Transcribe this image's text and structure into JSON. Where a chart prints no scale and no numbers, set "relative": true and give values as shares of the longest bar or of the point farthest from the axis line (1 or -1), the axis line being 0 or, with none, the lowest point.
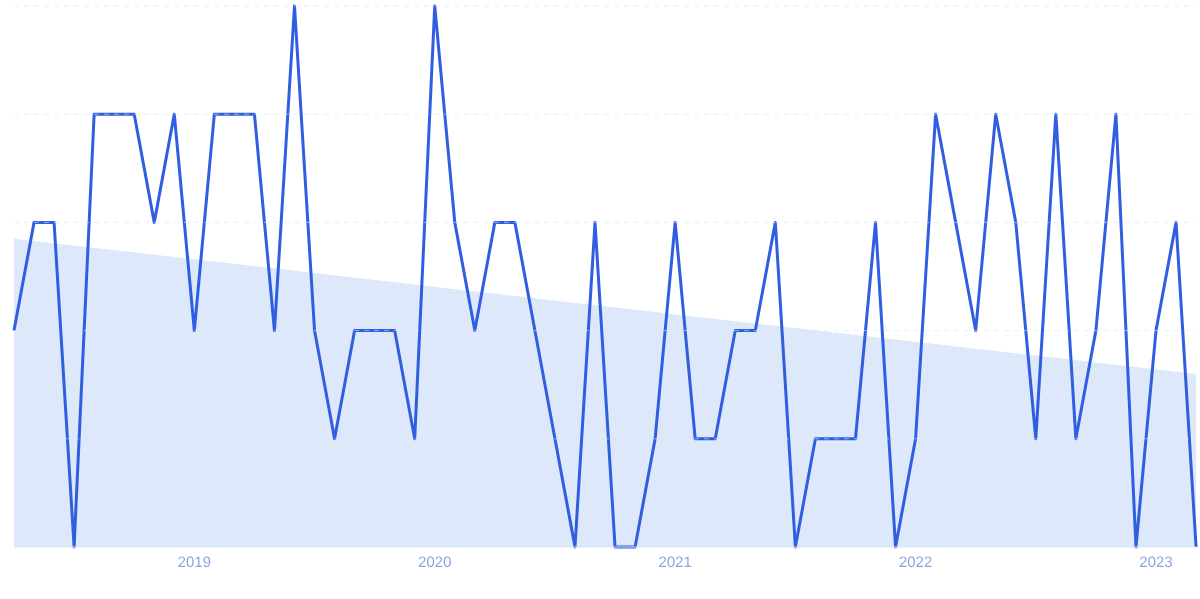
{
  "chart_data": {
    "type": "line",
    "relative": true,
    "grid": "y",
    "x": [
      "2018-04",
      "2018-05",
      "2018-06",
      "2018-07",
      "2018-08",
      "2018-09",
      "2018-10",
      "2018-11",
      "2018-12",
      "2019-01",
      "2019-02",
      "2019-03",
      "2019-04",
      "2019-05",
      "2019-06",
      "2019-07",
      "2019-08",
      "2019-09",
      "2019-10",
      "2019-11",
      "2019-12",
      "2020-01",
      "2020-02",
      "2020-03",
      "2020-04",
      "2020-05",
      "2020-06",
      "2020-07",
      "2020-08",
      "2020-09",
      "2020-10",
      "2020-11",
      "2020-12",
      "2021-01",
      "2021-02",
      "2021-03",
      "2021-04",
      "2021-05",
      "2021-06",
      "2021-07",
      "2021-08",
      "2021-09",
      "2021-10",
      "2021-11",
      "2021-12",
      "2022-01",
      "2022-02",
      "2022-03",
      "2022-04",
      "2022-05",
      "2022-06",
      "2022-07",
      "2022-08",
      "2022-09",
      "2022-10",
      "2022-11",
      "2022-12",
      "2023-01",
      "2023-02",
      "2023-03"
    ],
    "xlim": [
      "2018-04",
      "2023-03"
    ],
    "xticks": [
      {
        "value": "2019-01",
        "label": "2019"
      },
      {
        "value": "2020-01",
        "label": "2020"
      },
      {
        "value": "2021-01",
        "label": "2021"
      },
      {
        "value": "2022-01",
        "label": "2022"
      },
      {
        "value": "2023-01",
        "label": "2023"
      }
    ],
    "series": [
      {
        "type": "area",
        "color": "#dde9fa",
        "x": [
          "2018-04",
          "2023-03"
        ],
        "values": [
          0.57,
          0.32
        ]
      },
      {
        "color": "#2f5ee0",
        "values": [
          0.4,
          0.6,
          0.6,
          0,
          0.8,
          0.8,
          0.8,
          0.6,
          0.8,
          0.4,
          0.8,
          0.8,
          0.8,
          0.4,
          1,
          0.4,
          0.2,
          0.4,
          0.4,
          0.4,
          0.2,
          1,
          0.6,
          0.4,
          0.6,
          0.6,
          0.4,
          0.2,
          0,
          0.6,
          0,
          0,
          0.2,
          0.6,
          0.2,
          0.2,
          0.4,
          0.4,
          0.6,
          0,
          0.2,
          0.2,
          0.2,
          0.6,
          0,
          0.2,
          0.8,
          0.6,
          0.4,
          0.8,
          0.6,
          0.2,
          0.8,
          0.2,
          0.4,
          0.8,
          0,
          0.4,
          0.6,
          0
        ]
      }
    ]
  }
}
